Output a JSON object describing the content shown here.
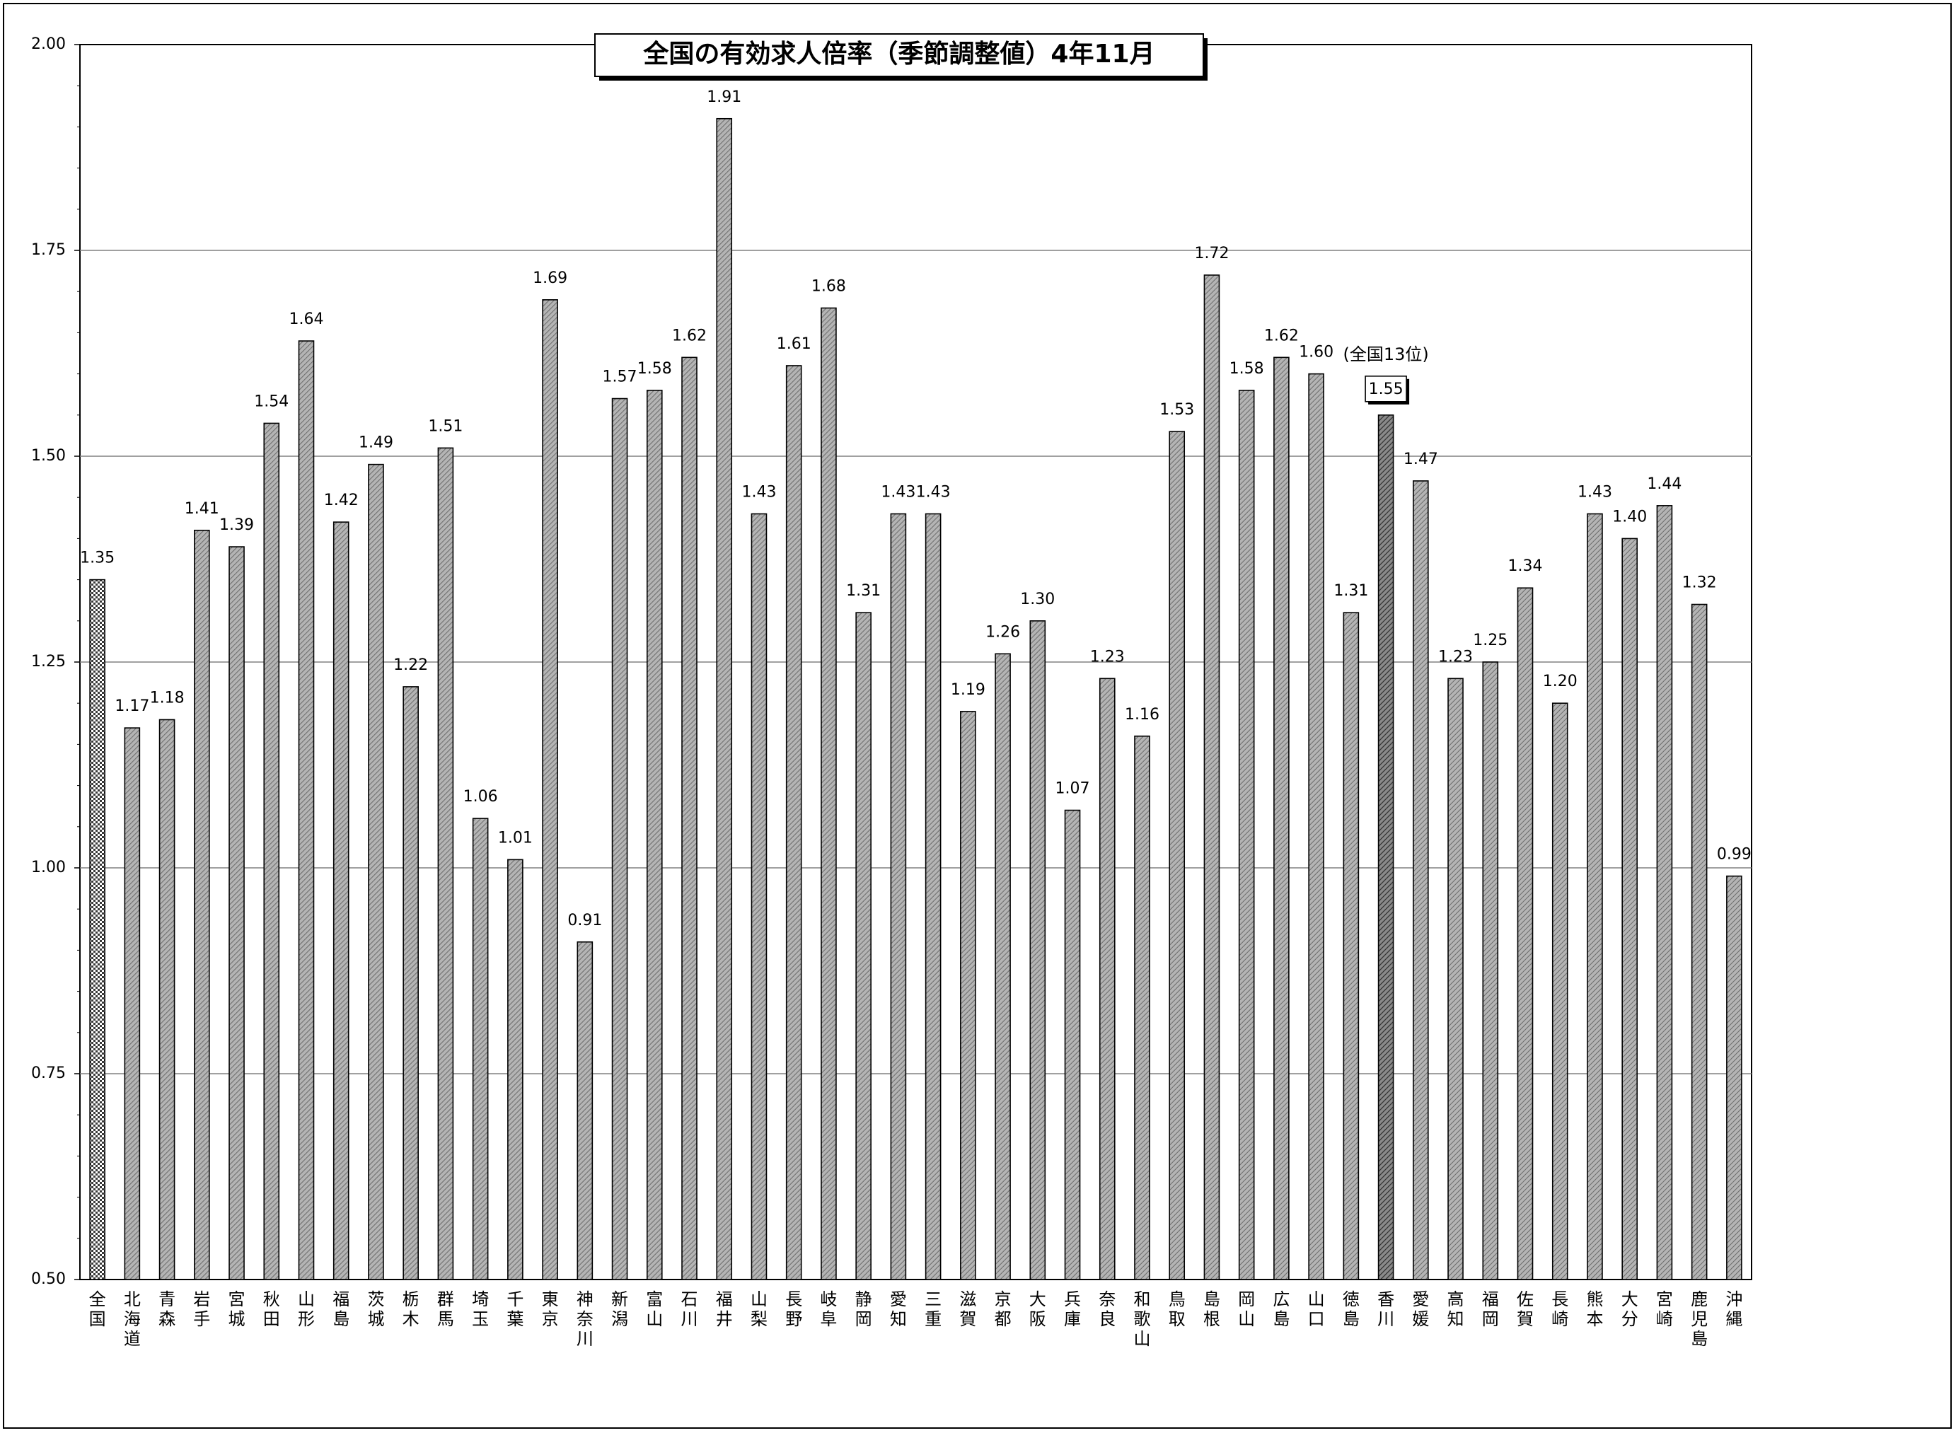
{
  "chart_data": {
    "type": "bar",
    "title": "全国の有効求人倍率（季節調整値）4年11月",
    "xlabel": "",
    "ylabel": "",
    "ylim": [
      0.5,
      2.0
    ],
    "y_ticks": [
      "0.50",
      "0.75",
      "1.00",
      "1.25",
      "1.50",
      "1.75",
      "2.00"
    ],
    "y_tick_values": [
      0.5,
      0.75,
      1.0,
      1.25,
      1.5,
      1.75,
      2.0
    ],
    "grid": true,
    "legend": "none",
    "categories": [
      "全国",
      "北海道",
      "青森",
      "岩手",
      "宮城",
      "秋田",
      "山形",
      "福島",
      "茨城",
      "栃木",
      "群馬",
      "埼玉",
      "千葉",
      "東京",
      "神奈川",
      "新潟",
      "富山",
      "石川",
      "福井",
      "山梨",
      "長野",
      "岐阜",
      "静岡",
      "愛知",
      "三重",
      "滋賀",
      "京都",
      "大阪",
      "兵庫",
      "奈良",
      "和歌山",
      "鳥取",
      "島根",
      "岡山",
      "広島",
      "山口",
      "徳島",
      "香川",
      "愛媛",
      "高知",
      "福岡",
      "佐賀",
      "長崎",
      "熊本",
      "大分",
      "宮崎",
      "鹿児島",
      "沖縄"
    ],
    "values": [
      1.35,
      1.17,
      1.18,
      1.41,
      1.39,
      1.54,
      1.64,
      1.42,
      1.49,
      1.22,
      1.51,
      1.06,
      1.01,
      1.69,
      0.91,
      1.57,
      1.58,
      1.62,
      1.91,
      1.43,
      1.61,
      1.68,
      1.31,
      1.43,
      1.43,
      1.19,
      1.26,
      1.3,
      1.07,
      1.23,
      1.16,
      1.53,
      1.72,
      1.58,
      1.62,
      1.6,
      1.31,
      1.55,
      1.47,
      1.23,
      1.25,
      1.34,
      1.2,
      1.43,
      1.4,
      1.44,
      1.32,
      0.99
    ],
    "value_labels": [
      "1.35",
      "1.17",
      "1.18",
      "1.41",
      "1.39",
      "1.54",
      "1.64",
      "1.42",
      "1.49",
      "1.22",
      "1.51",
      "1.06",
      "1.01",
      "1.69",
      "0.91",
      "1.57",
      "1.58",
      "1.62",
      "1.91",
      "1.43",
      "1.61",
      "1.68",
      "1.31",
      "1.43",
      "1.43",
      "1.19",
      "1.26",
      "1.30",
      "1.07",
      "1.23",
      "1.16",
      "1.53",
      "1.72",
      "1.58",
      "1.62",
      "1.60",
      "1.31",
      "1.55",
      "1.47",
      "1.23",
      "1.25",
      "1.34",
      "1.20",
      "1.43",
      "1.40",
      "1.44",
      "1.32",
      "0.99"
    ],
    "national_index": 0,
    "highlight_index": 37,
    "annotation": "(全国13位)",
    "colors": {
      "bar": "#a6a6a6",
      "national": "#8c8c8c",
      "highlight": "#6e6e6e",
      "grid": "#808080"
    }
  }
}
